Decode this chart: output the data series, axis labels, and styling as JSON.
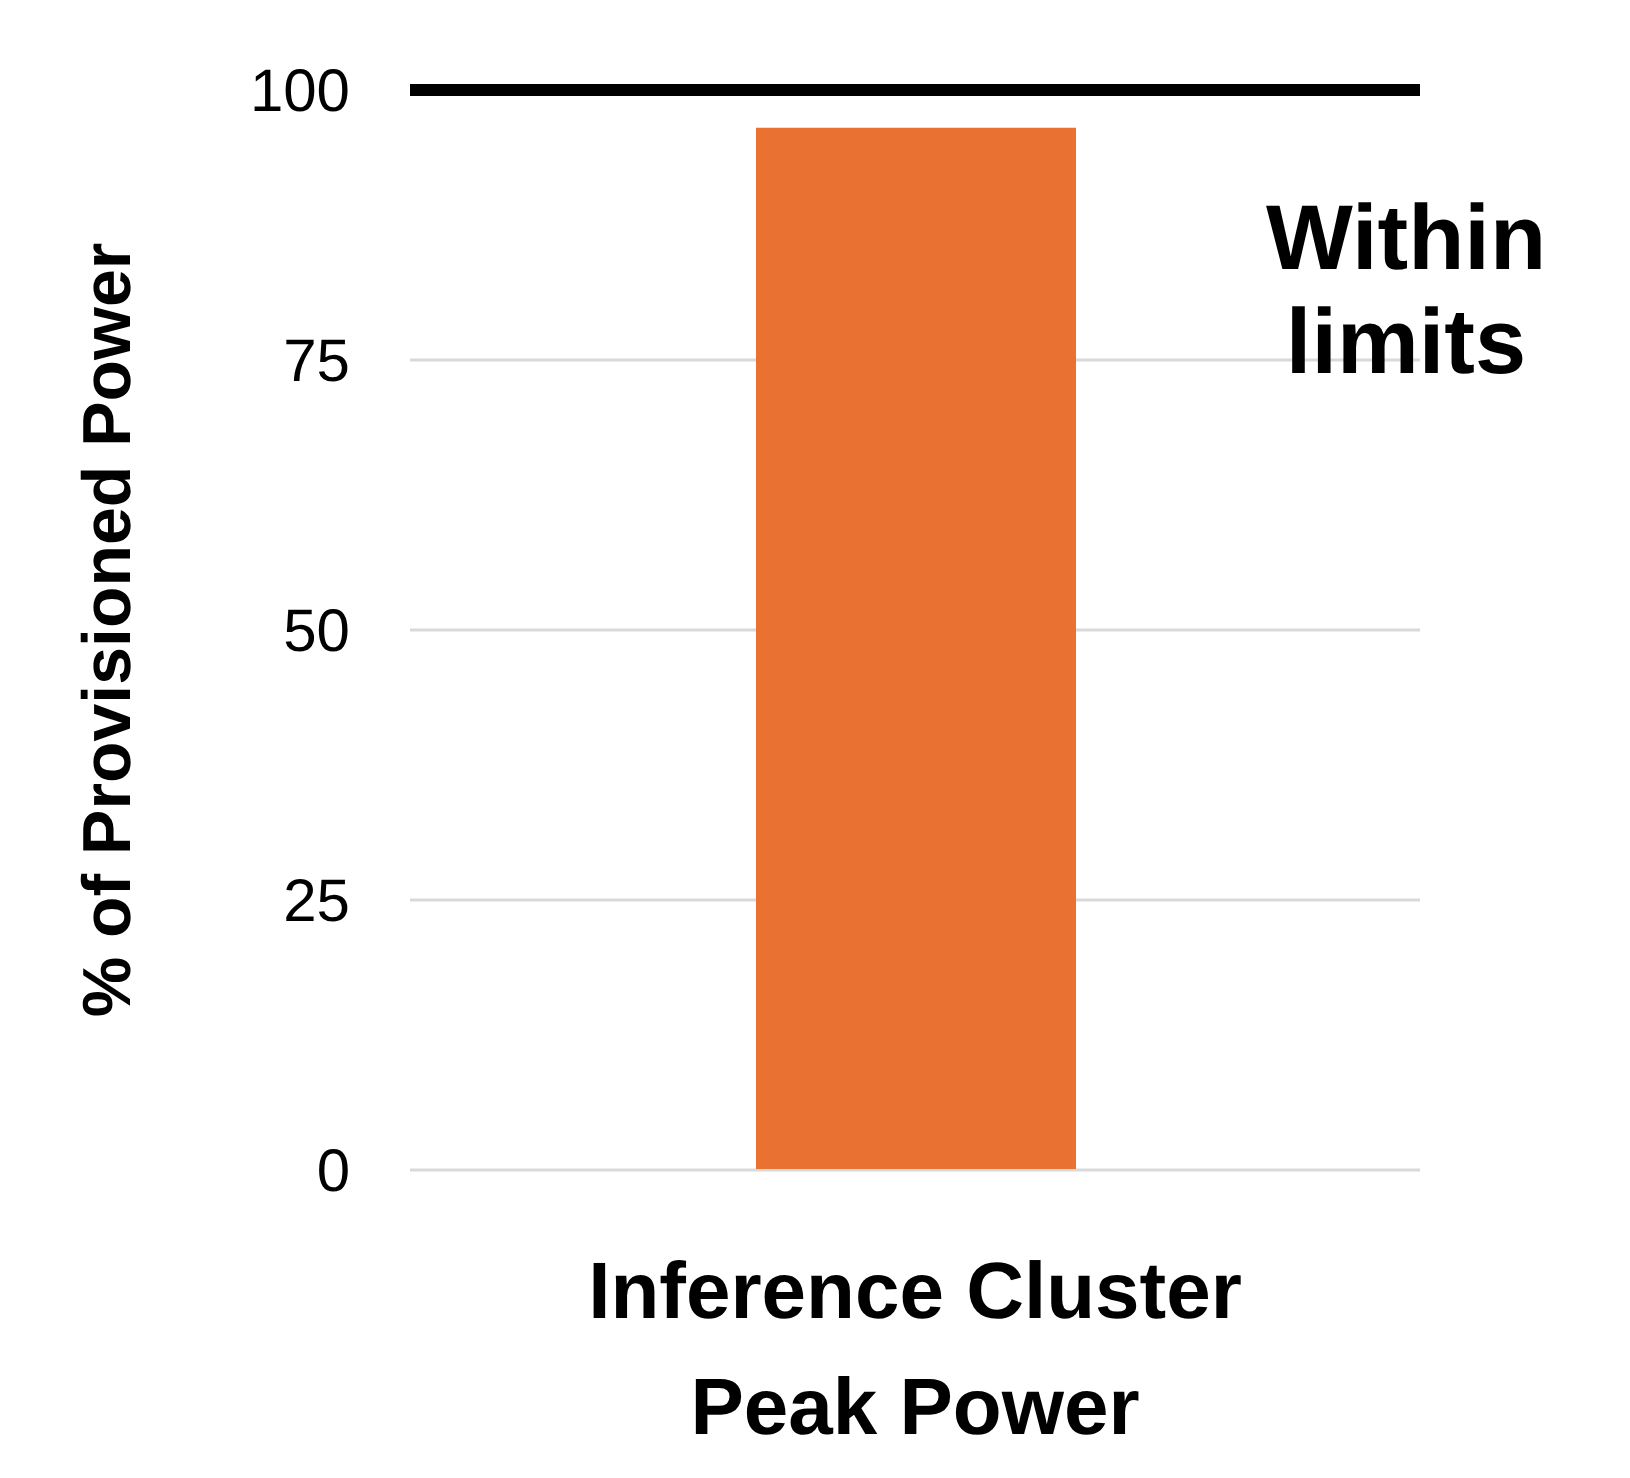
{
  "chart_data": {
    "type": "bar",
    "ylabel": "% of Provisioned Power",
    "categories": [
      "Inference Cluster Peak Power"
    ],
    "values": [
      96.5
    ],
    "color": "#e97132",
    "ylim": [
      0,
      100
    ],
    "yticks": [
      0,
      25,
      50,
      75,
      100
    ],
    "grid": "y",
    "ref_lines": [
      {
        "axis": "y",
        "value": 100,
        "label": "Within limits",
        "color": "#000000"
      }
    ]
  }
}
